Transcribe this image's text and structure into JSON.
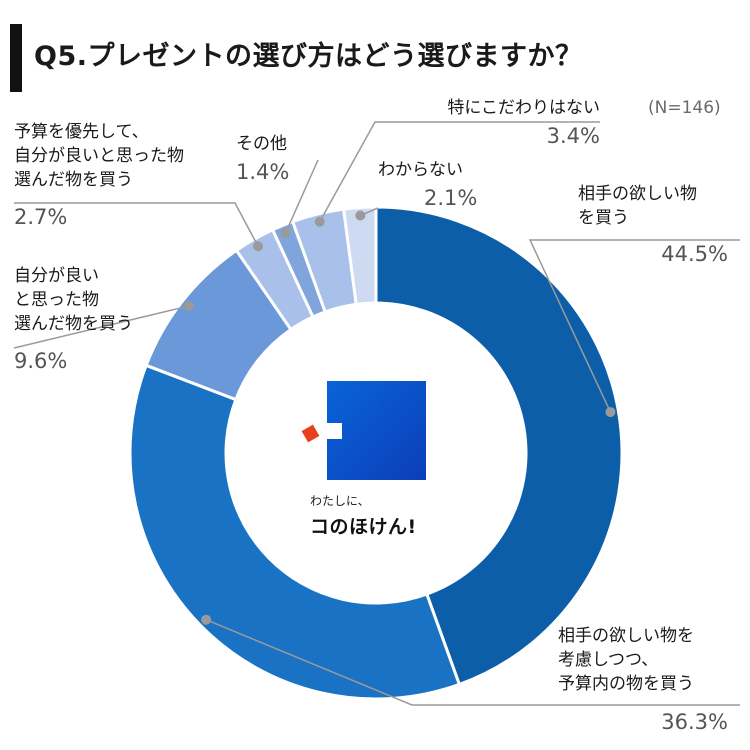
{
  "title": "Q5.プレゼントの選び方はどう選びますか？",
  "sample_note": "(N=146)",
  "logo": {
    "tagline": "わたしに、",
    "name": "コのほけん!"
  },
  "chart_data": {
    "type": "pie",
    "title": "Q5.プレゼントの選び方はどう選びますか？",
    "donut": true,
    "unit": "%",
    "slices": [
      {
        "label": "相手の欲しい物を買う",
        "value": 44.5,
        "value_label": "44.5%",
        "color": "#0d5ea8"
      },
      {
        "label": "相手の欲しい物を考慮しつつ、予算内の物を買う",
        "value": 36.3,
        "value_label": "36.3%",
        "color": "#1a72c4"
      },
      {
        "label": "自分が良いと思った物選んだ物を買う",
        "value": 9.6,
        "value_label": "9.6%",
        "color": "#6b98d8"
      },
      {
        "label": "予算を優先して、自分が良いと思った物選んだ物を買う",
        "value": 2.7,
        "value_label": "2.7%",
        "color": "#a9c1ea"
      },
      {
        "label": "その他",
        "value": 1.4,
        "value_label": "1.4%",
        "color": "#7fa5dc"
      },
      {
        "label": "特にこだわりはない",
        "value": 3.4,
        "value_label": "3.4%",
        "color": "#a9c1ea"
      },
      {
        "label": "わからない",
        "value": 2.1,
        "value_label": "2.1%",
        "color": "#cddaf2"
      }
    ]
  },
  "callouts": [
    {
      "lines": [
        "相手の欲しい物",
        "を買う"
      ],
      "pct": "44.5%"
    },
    {
      "lines": [
        "相手の欲しい物を",
        "考慮しつつ、",
        "予算内の物を買う"
      ],
      "pct": "36.3%"
    },
    {
      "lines": [
        "自分が良い",
        "と思った物",
        "選んだ物を買う"
      ],
      "pct": "9.6%"
    },
    {
      "lines": [
        "予算を優先して、",
        "自分が良いと思った物",
        "選んだ物を買う"
      ],
      "pct": "2.7%"
    },
    {
      "lines": [
        "その他"
      ],
      "pct": "1.4%"
    },
    {
      "lines": [
        "特にこだわりはない"
      ],
      "pct": "3.4%"
    },
    {
      "lines": [
        "わからない"
      ],
      "pct": "2.1%"
    }
  ]
}
